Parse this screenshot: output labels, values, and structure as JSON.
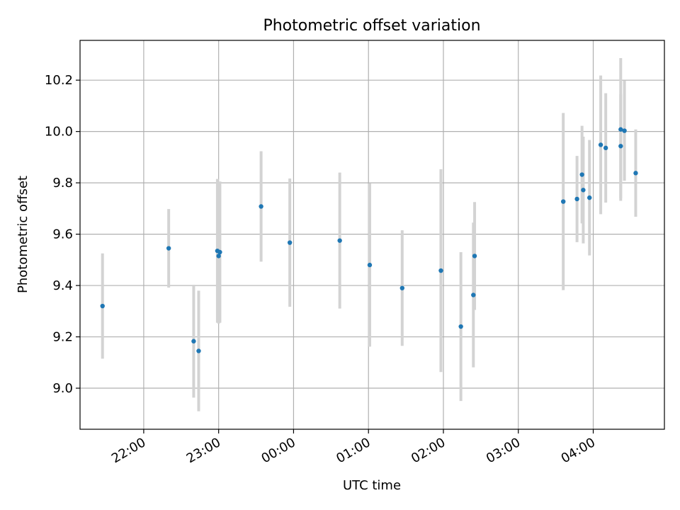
{
  "chart_data": {
    "type": "scatter",
    "title": "Photometric offset variation",
    "xlabel": "UTC time",
    "ylabel": "Photometric offset",
    "x_axis_type": "time",
    "x_range": [
      "21:09",
      "04:57"
    ],
    "ylim": [
      8.84,
      10.355
    ],
    "x_ticks": [
      "22:00",
      "23:00",
      "00:00",
      "01:00",
      "02:00",
      "03:00",
      "04:00"
    ],
    "y_ticks": [
      "9.0",
      "9.2",
      "9.4",
      "9.6",
      "9.8",
      "10.0",
      "10.2"
    ],
    "x_tick_rotation": 30,
    "grid": true,
    "series": [
      {
        "marker_color": "#1f77b4",
        "errorbar_color": "#d3d3d3",
        "points": [
          {
            "x": "21:27",
            "y": 9.32,
            "err": 0.205
          },
          {
            "x": "22:20",
            "y": 9.545,
            "err": 0.153
          },
          {
            "x": "22:40",
            "y": 9.183,
            "err": 0.22
          },
          {
            "x": "22:44",
            "y": 9.145,
            "err": 0.235
          },
          {
            "x": "22:59",
            "y": 9.535,
            "err": 0.28
          },
          {
            "x": "23:00",
            "y": 9.515,
            "err": 0.263
          },
          {
            "x": "23:01",
            "y": 9.53,
            "err": 0.275
          },
          {
            "x": "23:34",
            "y": 9.708,
            "err": 0.215
          },
          {
            "x": "23:57",
            "y": 9.567,
            "err": 0.25
          },
          {
            "x": "00:37",
            "y": 9.575,
            "err": 0.265
          },
          {
            "x": "01:01",
            "y": 9.48,
            "err": 0.318
          },
          {
            "x": "01:27",
            "y": 9.39,
            "err": 0.225
          },
          {
            "x": "01:58",
            "y": 9.458,
            "err": 0.395
          },
          {
            "x": "02:14",
            "y": 9.24,
            "err": 0.29
          },
          {
            "x": "02:24",
            "y": 9.363,
            "err": 0.282
          },
          {
            "x": "02:25",
            "y": 9.515,
            "err": 0.21
          },
          {
            "x": "03:36",
            "y": 9.727,
            "err": 0.345
          },
          {
            "x": "03:47",
            "y": 9.737,
            "err": 0.168
          },
          {
            "x": "03:51",
            "y": 9.832,
            "err": 0.19
          },
          {
            "x": "03:52",
            "y": 9.772,
            "err": 0.208
          },
          {
            "x": "03:57",
            "y": 9.742,
            "err": 0.225
          },
          {
            "x": "04:06",
            "y": 9.948,
            "err": 0.27
          },
          {
            "x": "04:10",
            "y": 9.936,
            "err": 0.213
          },
          {
            "x": "04:22",
            "y": 10.008,
            "err": 0.278
          },
          {
            "x": "04:22",
            "y": 9.943,
            "err": 0.203
          },
          {
            "x": "04:25",
            "y": 10.003,
            "err": 0.195
          },
          {
            "x": "04:34",
            "y": 9.838,
            "err": 0.17
          }
        ]
      }
    ]
  }
}
